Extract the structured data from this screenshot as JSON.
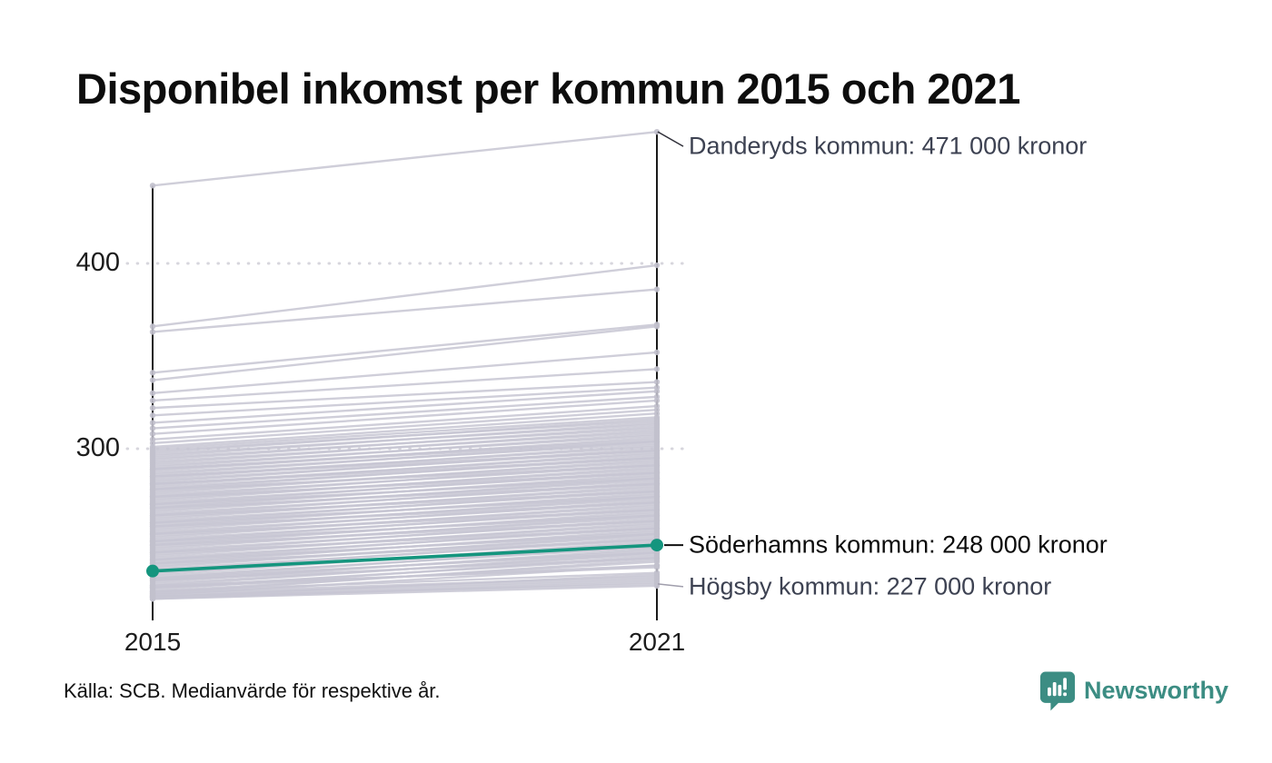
{
  "title": "Disponibel inkomst per kommun 2015 och 2021",
  "source_note": "Källa: SCB. Medianvärde för respektive år.",
  "branding": {
    "name": "Newsworthy",
    "color": "#3c8d83"
  },
  "colors": {
    "highlight": "#14957e",
    "background_line": "#c7c6d2",
    "dot": "#c2c1cd",
    "axis": "#1a1a1a",
    "grid": "#d7d6dd",
    "annotation_text": "#3d4252",
    "annotation_highlight_text": "#0b0b0b"
  },
  "chart_data": {
    "type": "line",
    "subtype": "slope",
    "title": "Disponibel inkomst per kommun 2015 och 2021",
    "x_categories": [
      "2015",
      "2021"
    ],
    "y_ticks": [
      400,
      300
    ],
    "y_tick_labels": [
      "400",
      "300"
    ],
    "ylim": [
      207,
      480
    ],
    "grid": "dotted-horizontal",
    "legend": "none",
    "labeled_series": [
      {
        "name": "Danderyds kommun",
        "values": [
          442,
          471
        ],
        "label": "Danderyds kommun: 471 000 kronor",
        "label_value": 471,
        "highlight": false
      },
      {
        "name": "Söderhamns kommun",
        "values": [
          234,
          248
        ],
        "label": "Söderhamns kommun: 248 000 kronor",
        "label_value": 248,
        "highlight": true
      },
      {
        "name": "Högsby kommun",
        "values": [
          220,
          227
        ],
        "label": "Högsby kommun: 227 000 kronor",
        "label_value": 227,
        "highlight": false
      }
    ],
    "background_lines": [
      [
        366,
        399
      ],
      [
        363,
        386
      ],
      [
        341,
        367
      ],
      [
        337,
        366
      ],
      [
        330,
        352
      ],
      [
        326,
        343
      ],
      [
        322,
        336
      ],
      [
        318,
        333
      ],
      [
        314,
        331
      ],
      [
        311,
        328
      ],
      [
        308,
        326
      ],
      [
        305,
        323
      ],
      [
        303,
        321
      ],
      [
        301,
        319
      ],
      [
        300,
        317
      ],
      [
        299,
        315
      ],
      [
        298,
        316
      ],
      [
        297,
        313
      ],
      [
        296,
        314
      ],
      [
        295,
        311
      ],
      [
        294,
        312
      ],
      [
        293,
        309
      ],
      [
        292,
        310
      ],
      [
        291,
        307
      ],
      [
        290,
        308
      ],
      [
        289,
        305
      ],
      [
        288,
        306
      ],
      [
        287,
        303
      ],
      [
        286,
        304
      ],
      [
        285,
        301
      ],
      [
        284,
        302
      ],
      [
        283,
        299
      ],
      [
        282,
        300
      ],
      [
        281,
        297
      ],
      [
        280,
        298
      ],
      [
        289,
        304
      ],
      [
        285,
        299
      ],
      [
        281,
        295
      ],
      [
        279,
        295
      ],
      [
        278,
        296
      ],
      [
        277,
        293
      ],
      [
        276,
        294
      ],
      [
        275,
        291
      ],
      [
        274,
        292
      ],
      [
        273,
        289
      ],
      [
        272,
        290
      ],
      [
        271,
        287
      ],
      [
        270,
        288
      ],
      [
        278,
        291
      ],
      [
        274,
        287
      ],
      [
        270,
        284
      ],
      [
        269,
        285
      ],
      [
        268,
        286
      ],
      [
        267,
        283
      ],
      [
        266,
        284
      ],
      [
        265,
        281
      ],
      [
        264,
        282
      ],
      [
        263,
        279
      ],
      [
        262,
        280
      ],
      [
        261,
        277
      ],
      [
        260,
        278
      ],
      [
        268,
        281
      ],
      [
        264,
        277
      ],
      [
        260,
        274
      ],
      [
        259,
        275
      ],
      [
        258,
        276
      ],
      [
        257,
        273
      ],
      [
        256,
        274
      ],
      [
        255,
        271
      ],
      [
        254,
        272
      ],
      [
        253,
        269
      ],
      [
        252,
        270
      ],
      [
        251,
        267
      ],
      [
        250,
        268
      ],
      [
        258,
        271
      ],
      [
        254,
        267
      ],
      [
        250,
        264
      ],
      [
        249,
        265
      ],
      [
        248,
        266
      ],
      [
        247,
        263
      ],
      [
        246,
        264
      ],
      [
        245,
        261
      ],
      [
        244,
        262
      ],
      [
        243,
        259
      ],
      [
        242,
        260
      ],
      [
        241,
        257
      ],
      [
        240,
        258
      ],
      [
        248,
        261
      ],
      [
        244,
        257
      ],
      [
        240,
        254
      ],
      [
        239,
        255
      ],
      [
        238,
        256
      ],
      [
        237,
        253
      ],
      [
        236,
        254
      ],
      [
        235,
        251
      ],
      [
        234,
        252
      ],
      [
        233,
        249
      ],
      [
        232,
        250
      ],
      [
        231,
        247
      ],
      [
        230,
        248
      ],
      [
        238,
        251
      ],
      [
        234,
        247
      ],
      [
        230,
        244
      ],
      [
        229,
        245
      ],
      [
        228,
        246
      ],
      [
        227,
        243
      ],
      [
        226,
        244
      ],
      [
        225,
        241
      ],
      [
        224,
        242
      ],
      [
        223,
        239
      ],
      [
        222,
        240
      ],
      [
        221,
        237
      ],
      [
        229,
        241
      ],
      [
        225,
        237
      ],
      [
        222,
        231
      ],
      [
        221,
        230
      ],
      [
        220,
        229
      ],
      [
        219,
        228
      ],
      [
        219,
        226
      ],
      [
        220,
        232
      ],
      [
        223,
        233
      ],
      [
        226,
        236
      ]
    ]
  }
}
